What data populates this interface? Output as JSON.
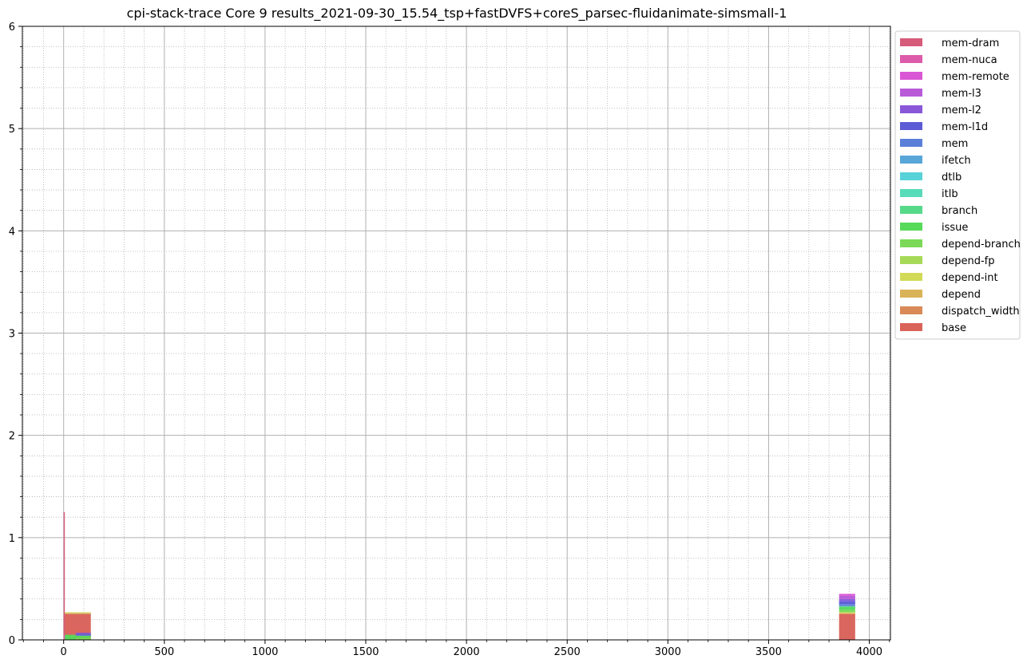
{
  "chart_data": {
    "type": "area",
    "title": "cpi-stack-trace Core 9 results_2021-09-30_15.54_tsp+fastDVFS+coreS_parsec-fluidanimate-simsmall-1",
    "xlabel": "",
    "ylabel": "",
    "xlim": [
      -205,
      4105
    ],
    "ylim": [
      0,
      6
    ],
    "x_ticks": [
      0,
      500,
      1000,
      1500,
      2000,
      2500,
      3000,
      3500,
      4000
    ],
    "y_ticks": [
      0,
      1,
      2,
      3,
      4,
      5,
      6
    ],
    "grid": true,
    "minor_grid": true,
    "legend_position": "upper-right-outside",
    "series": [
      {
        "name": "mem-dram",
        "color": "#d65a7a",
        "segments": [
          {
            "x0": 0,
            "x1": 5,
            "value": 1.2
          }
        ]
      },
      {
        "name": "mem-nuca",
        "color": "#dc5bab",
        "segments": [
          {
            "x0": 0,
            "x1": 5,
            "value": 0.05
          }
        ]
      },
      {
        "name": "mem-remote",
        "color": "#d957d4",
        "segments": [
          {
            "x0": 3850,
            "x1": 3930,
            "value": 0.02
          }
        ]
      },
      {
        "name": "mem-l3",
        "color": "#b85ad8",
        "segments": [
          {
            "x0": 3850,
            "x1": 3930,
            "value": 0.03
          }
        ]
      },
      {
        "name": "mem-l2",
        "color": "#8a57d9",
        "segments": [
          {
            "x0": 60,
            "x1": 135,
            "value": 0.01
          },
          {
            "x0": 3850,
            "x1": 3930,
            "value": 0.02
          }
        ]
      },
      {
        "name": "mem-l1d",
        "color": "#5c5bd6",
        "segments": [
          {
            "x0": 60,
            "x1": 135,
            "value": 0.01
          },
          {
            "x0": 3850,
            "x1": 3930,
            "value": 0.03
          }
        ]
      },
      {
        "name": "mem",
        "color": "#5a7fd8",
        "segments": [
          {
            "x0": 60,
            "x1": 135,
            "value": 0.01
          },
          {
            "x0": 3850,
            "x1": 3930,
            "value": 0.02
          }
        ]
      },
      {
        "name": "ifetch",
        "color": "#58a5d8",
        "segments": []
      },
      {
        "name": "dtlb",
        "color": "#57d2d8",
        "segments": []
      },
      {
        "name": "itlb",
        "color": "#58dbb8",
        "segments": []
      },
      {
        "name": "branch",
        "color": "#57d98a",
        "segments": [
          {
            "x0": 3850,
            "x1": 3930,
            "value": 0.01
          }
        ]
      },
      {
        "name": "issue",
        "color": "#57d95a",
        "segments": [
          {
            "x0": 5,
            "x1": 60,
            "value": 0.05
          },
          {
            "x0": 60,
            "x1": 135,
            "value": 0.02
          },
          {
            "x0": 3850,
            "x1": 3930,
            "value": 0.03
          }
        ]
      },
      {
        "name": "depend-branch",
        "color": "#7bd957",
        "segments": [
          {
            "x0": 60,
            "x1": 135,
            "value": 0.02
          },
          {
            "x0": 3850,
            "x1": 3930,
            "value": 0.02
          }
        ]
      },
      {
        "name": "depend-fp",
        "color": "#a6d957",
        "segments": []
      },
      {
        "name": "depend-int",
        "color": "#d2d957",
        "segments": [
          {
            "x0": 0,
            "x1": 135,
            "value": 0.01
          },
          {
            "x0": 3850,
            "x1": 3930,
            "value": 0.01
          }
        ]
      },
      {
        "name": "depend",
        "color": "#d9b357",
        "segments": []
      },
      {
        "name": "dispatch_width",
        "color": "#d98a57",
        "segments": [
          {
            "x0": 0,
            "x1": 135,
            "value": 0.01
          },
          {
            "x0": 3850,
            "x1": 3930,
            "value": 0.01
          }
        ]
      },
      {
        "name": "base",
        "color": "#d9625a",
        "segments": [
          {
            "x0": 0,
            "x1": 135,
            "value": 0.25
          },
          {
            "x0": 3850,
            "x1": 3930,
            "value": 0.25
          }
        ]
      }
    ]
  }
}
